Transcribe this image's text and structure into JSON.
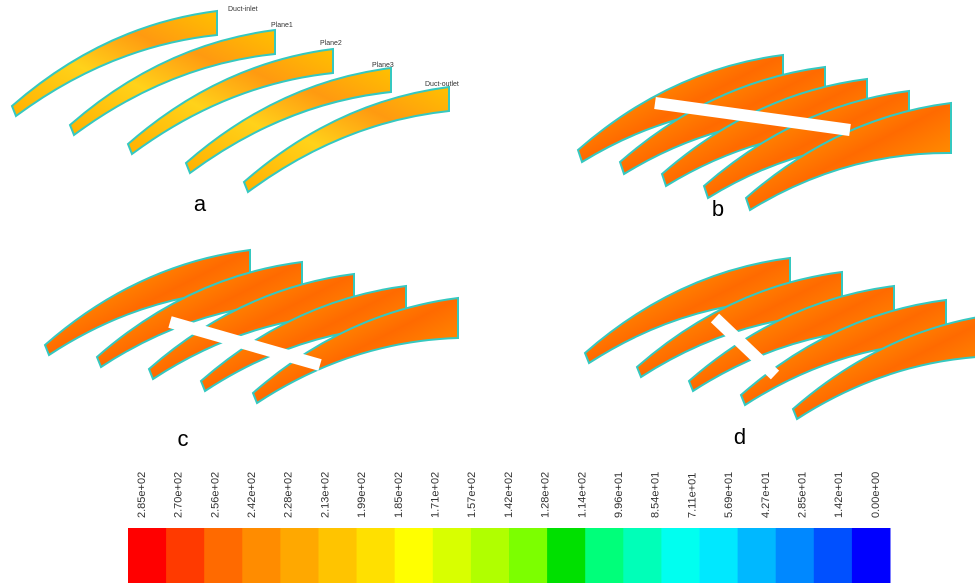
{
  "panels": [
    {
      "label": "a",
      "annotations": [
        "Duct-inlet",
        "Plane1",
        "Plane2",
        "Plane3",
        "Duct-outlet"
      ]
    },
    {
      "label": "b"
    },
    {
      "label": "c"
    },
    {
      "label": "d"
    }
  ],
  "colorbar": {
    "labels": [
      "2.85e+02",
      "2.70e+02",
      "2.56e+02",
      "2.42e+02",
      "2.28e+02",
      "2.13e+02",
      "1.99e+02",
      "1.85e+02",
      "1.71e+02",
      "1.57e+02",
      "1.42e+02",
      "1.28e+02",
      "1.14e+02",
      "9.96e+01",
      "8.54e+01",
      "7.11e+01",
      "5.69e+01",
      "4.27e+01",
      "2.85e+01",
      "1.42e+01",
      "0.00e+00"
    ],
    "colors": [
      "#ff0000",
      "#ff3a00",
      "#ff6a00",
      "#ff8c00",
      "#ffa800",
      "#ffc400",
      "#ffe000",
      "#ffff00",
      "#d8ff00",
      "#b0ff00",
      "#7cff00",
      "#00e000",
      "#00ff7a",
      "#00ffb8",
      "#00fff0",
      "#00e8ff",
      "#00b8ff",
      "#0088ff",
      "#0050ff",
      "#0000ff"
    ]
  }
}
